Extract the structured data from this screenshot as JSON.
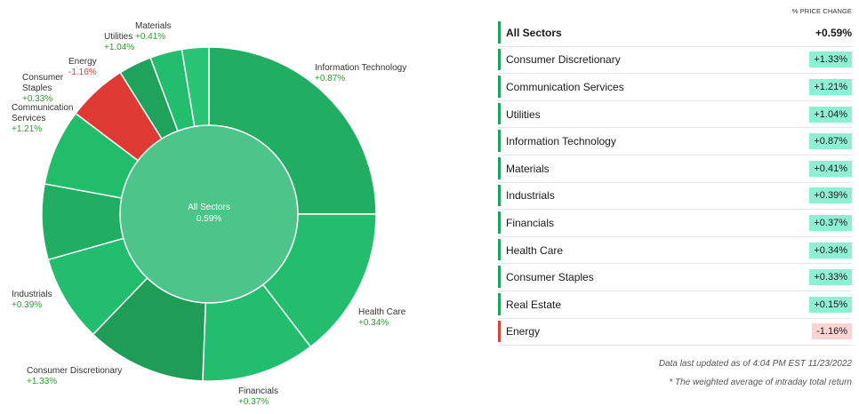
{
  "chart_data": {
    "type": "donut",
    "center": {
      "label": "All Sectors",
      "value": "0.59%"
    },
    "slices": [
      {
        "name": "Information Technology",
        "value_label": "+0.87%",
        "value": 0.87,
        "weight": 25.0,
        "color": "#21ad62"
      },
      {
        "name": "Health Care",
        "value_label": "+0.34%",
        "value": 0.34,
        "weight": 14.6,
        "color": "#22bd6d"
      },
      {
        "name": "Financials",
        "value_label": "+0.37%",
        "value": 0.37,
        "weight": 11.0,
        "color": "#22bd6d"
      },
      {
        "name": "Consumer Discretionary",
        "value_label": "+1.33%",
        "value": 1.33,
        "weight": 11.6,
        "color": "#1f9d57"
      },
      {
        "name": "Industrials",
        "value_label": "+0.39%",
        "value": 0.39,
        "weight": 8.4,
        "color": "#22bd6d"
      },
      {
        "name": "Real Estate",
        "value_label": "",
        "value": 0.15,
        "weight": 7.3,
        "color": "#21ad62"
      },
      {
        "name": "Communication Services",
        "value_label": "+1.21%",
        "value": 1.21,
        "weight": 7.4,
        "color": "#21bd6b"
      },
      {
        "name": "Consumer Staples",
        "value_label": "+0.33%",
        "value": 0.33,
        "weight": 0,
        "color": "#22bd6d"
      },
      {
        "name": "Energy",
        "value_label": "-1.16%",
        "value": -1.16,
        "weight": 5.8,
        "color": "#e03a34"
      },
      {
        "name": "Utilities",
        "value_label": "+1.04%",
        "value": 1.04,
        "weight": 3.2,
        "color": "#1fa35c"
      },
      {
        "name": "Materials",
        "value_label": "+0.41%",
        "value": 0.41,
        "weight": 3.1,
        "color": "#22bd6d"
      },
      {
        "name": "",
        "value_label": "",
        "value": 0,
        "weight": 2.6,
        "color": "#2ac477"
      }
    ]
  },
  "donut_labels": [
    {
      "id": "info-tech",
      "name": "Information Technology",
      "value": "+0.87%",
      "positive": true
    },
    {
      "id": "health-care",
      "name": "Health Care",
      "value": "+0.34%",
      "positive": true
    },
    {
      "id": "financials",
      "name": "Financials",
      "value": "+0.37%",
      "positive": true
    },
    {
      "id": "consumer-discretionary",
      "name": "Consumer Discretionary",
      "value": "+1.33%",
      "positive": true
    },
    {
      "id": "industrials",
      "name": "Industrials",
      "value": "+0.39%",
      "positive": true
    },
    {
      "id": "communication-services",
      "name": "Communication Services",
      "value": "+1.21%",
      "positive": true
    },
    {
      "id": "consumer-staples",
      "name": "Consumer Staples",
      "value": "+0.33%",
      "positive": true
    },
    {
      "id": "energy",
      "name": "Energy",
      "value": "-1.16%",
      "positive": false
    },
    {
      "id": "utilities",
      "name": "Utilities",
      "value": "+1.04%",
      "positive": true
    },
    {
      "id": "materials",
      "name": "Materials",
      "value": "+0.41%",
      "positive": true
    }
  ],
  "table": {
    "column_header": "% PRICE CHANGE",
    "all_sectors": {
      "name": "All Sectors",
      "value": "+0.59%"
    },
    "rows": [
      {
        "name": "Consumer Discretionary",
        "value": "+1.33%",
        "positive": true
      },
      {
        "name": "Communication Services",
        "value": "+1.21%",
        "positive": true
      },
      {
        "name": "Utilities",
        "value": "+1.04%",
        "positive": true
      },
      {
        "name": "Information Technology",
        "value": "+0.87%",
        "positive": true
      },
      {
        "name": "Materials",
        "value": "+0.41%",
        "positive": true
      },
      {
        "name": "Industrials",
        "value": "+0.39%",
        "positive": true
      },
      {
        "name": "Financials",
        "value": "+0.37%",
        "positive": true
      },
      {
        "name": "Health Care",
        "value": "+0.34%",
        "positive": true
      },
      {
        "name": "Consumer Staples",
        "value": "+0.33%",
        "positive": true
      },
      {
        "name": "Real Estate",
        "value": "+0.15%",
        "positive": true
      },
      {
        "name": "Energy",
        "value": "-1.16%",
        "positive": false
      }
    ],
    "footnotes": [
      "Data last updated as of 4:04 PM EST 11/23/2022",
      "* The weighted average of intraday total return"
    ]
  },
  "colors": {
    "positive_text": "#2e9c2e",
    "negative_text": "#e03a34",
    "positive_bar": "#1fa35c",
    "negative_bar": "#d9423a",
    "positive_badge": "#8ef0d2",
    "negative_badge": "#fbd4d2",
    "center_fill": "#4dc48a"
  }
}
